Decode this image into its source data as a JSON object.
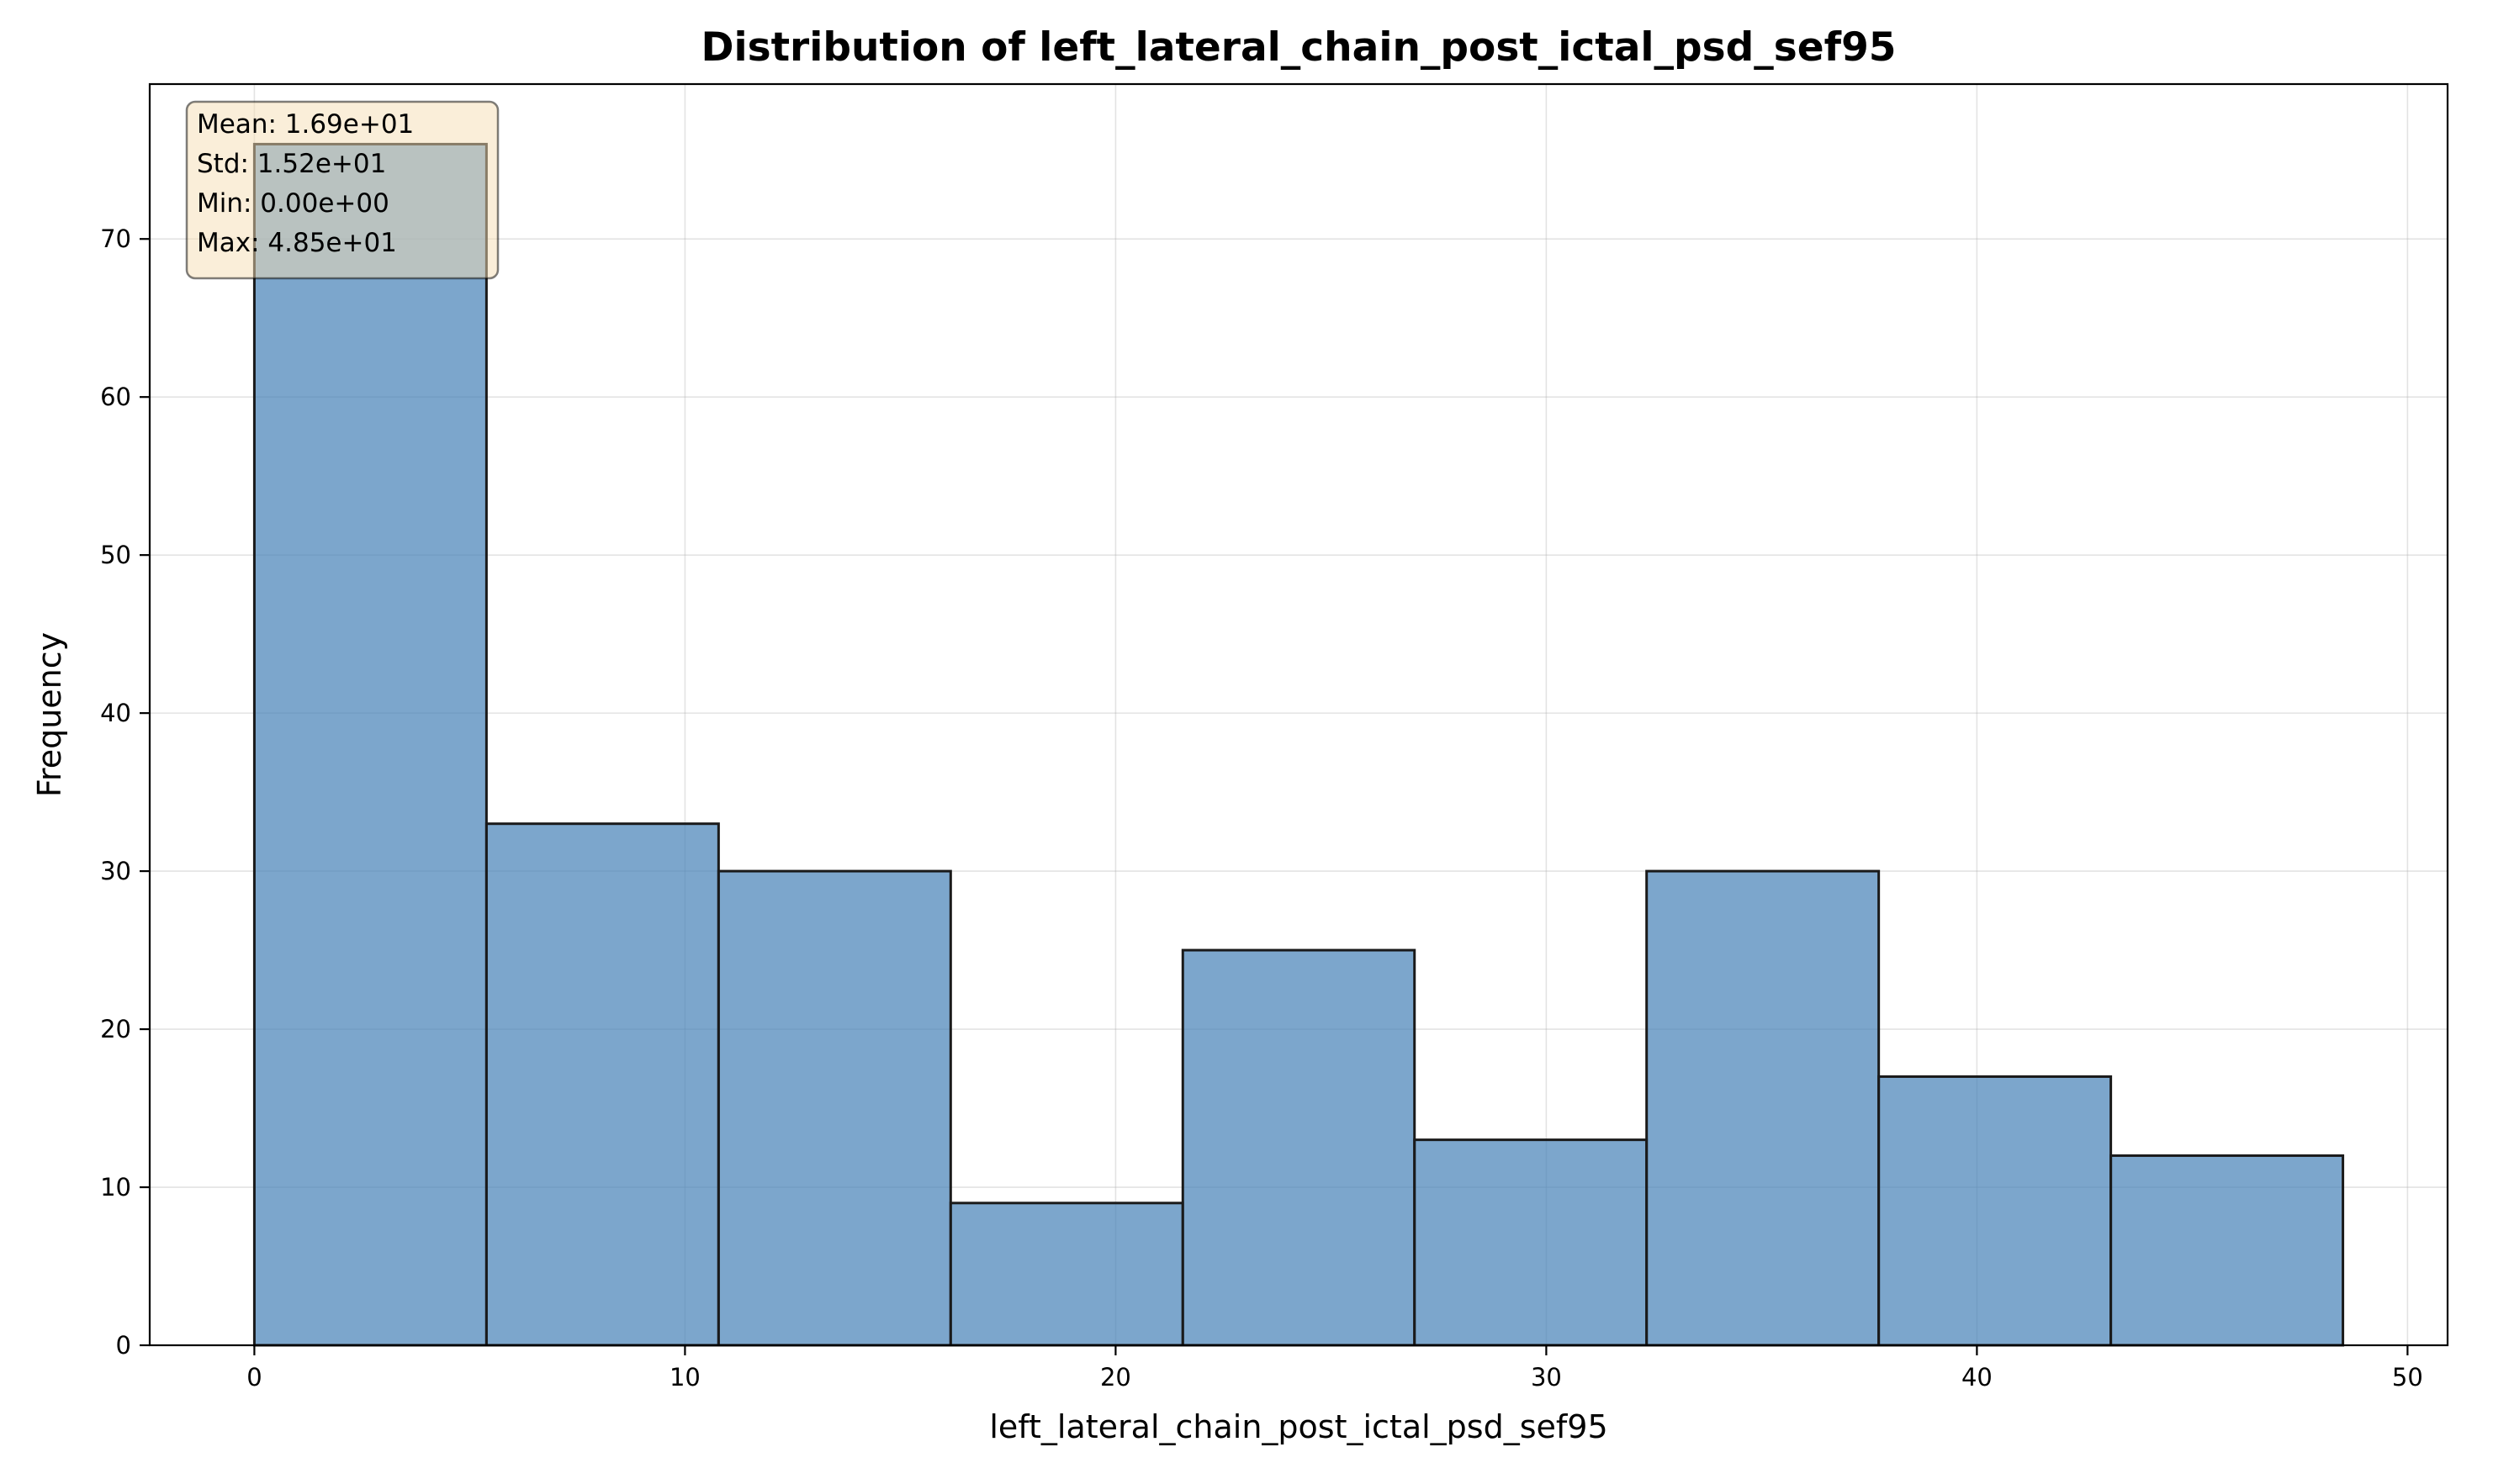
{
  "chart_data": {
    "type": "bar",
    "title": "Distribution of left_lateral_chain_post_ictal_psd_sef95",
    "xlabel": "left_lateral_chain_post_ictal_psd_sef95",
    "ylabel": "Frequency",
    "bin_edges": [
      0.0,
      5.39,
      10.78,
      16.17,
      21.56,
      26.94,
      32.33,
      37.72,
      43.11,
      48.5
    ],
    "values": [
      76,
      33,
      30,
      9,
      25,
      13,
      30,
      17,
      12
    ],
    "xlim": [
      -2.43,
      50.93
    ],
    "ylim": [
      0,
      79.8
    ],
    "xticks": [
      0,
      10,
      20,
      30,
      40,
      50
    ],
    "yticks": [
      0,
      10,
      20,
      30,
      40,
      50,
      60,
      70
    ],
    "grid": true,
    "bar_color": "#4a84b8",
    "edge_color": "#1a1a1a",
    "stats_box": {
      "location": "top-left",
      "lines": [
        "Mean: 1.69e+01",
        "Std: 1.52e+01",
        "Min: 0.00e+00",
        "Max: 4.85e+01"
      ],
      "background": "#f5deb3"
    }
  }
}
